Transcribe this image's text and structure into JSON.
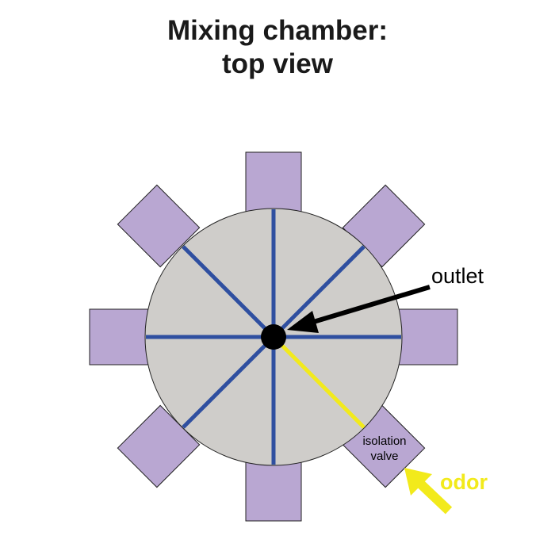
{
  "title": {
    "line1": "Mixing chamber:",
    "line2": "top view"
  },
  "labels": {
    "outlet": "outlet",
    "isolation_valve_line1": "isolation",
    "isolation_valve_line2": "valve",
    "odor": "odor"
  },
  "colors": {
    "chamber_fill": "#cfcdca",
    "chamber_stroke": "#222222",
    "valve_fill": "#b9a7d2",
    "valve_stroke": "#222222",
    "divider": "#2f4fa0",
    "odor_highlight": "#f2ea1b",
    "outlet": "#000000"
  },
  "valve_count": 8,
  "odor_valve": "bottom-right"
}
